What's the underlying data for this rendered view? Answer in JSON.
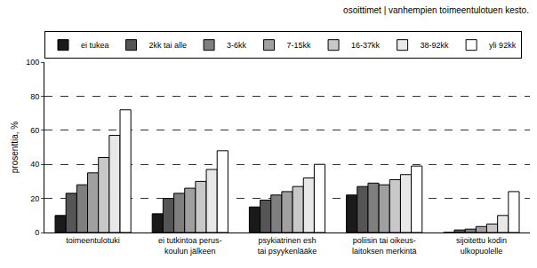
{
  "chart_data": {
    "type": "bar",
    "title": "osoittimet | vanhempien toimeentulotuen kesto.",
    "y_label": "prosenttia, %",
    "categories": [
      "toimeentulotuki",
      "ei tutkintoa perus-\nkoulun jälkeen",
      "psykiatrinen esh\ntai psyykenlääke",
      "poliisin tai oikeus-\nlaitoksen merkintä",
      "sijoitettu kodin\nulkopuolelle"
    ],
    "series": [
      {
        "name": "ei tukea",
        "color": "#1a1a1a",
        "values": [
          10,
          11,
          15,
          22,
          0
        ]
      },
      {
        "name": "2kk tai alle",
        "color": "#555555",
        "values": [
          23,
          20,
          19,
          27,
          1.5
        ]
      },
      {
        "name": "3-6kk",
        "color": "#7f7f7f",
        "values": [
          28,
          23,
          22,
          29,
          2
        ]
      },
      {
        "name": "7-15kk",
        "color": "#a0a0a0",
        "values": [
          35,
          26,
          24,
          28,
          3.5
        ]
      },
      {
        "name": "16-37kk",
        "color": "#c8c8c8",
        "values": [
          44,
          30,
          27,
          31,
          5
        ]
      },
      {
        "name": "38-92kk",
        "color": "#e8e8e8",
        "values": [
          57,
          37,
          32,
          34,
          10
        ]
      },
      {
        "name": "yli 92kk",
        "color": "#ffffff",
        "values": [
          72,
          48,
          40,
          39,
          24
        ]
      }
    ],
    "ylim": [
      0,
      100
    ],
    "yticks": [
      0,
      20,
      40,
      60,
      80,
      100
    ],
    "grid": true,
    "legend": "top left"
  }
}
